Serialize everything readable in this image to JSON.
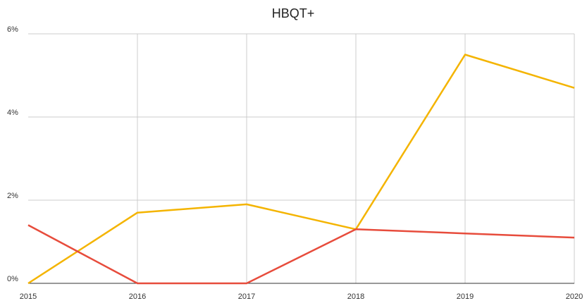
{
  "chart_data": {
    "type": "line",
    "title": "HBQT+",
    "categories": [
      "2015",
      "2016",
      "2017",
      "2018",
      "2019",
      "2020"
    ],
    "series": [
      {
        "color": "#f4b400",
        "values": [
          0,
          1.7,
          1.9,
          1.3,
          5.5,
          4.7
        ]
      },
      {
        "color": "#e74c3c",
        "values": [
          1.4,
          0,
          0,
          1.3,
          1.2,
          1.1
        ]
      }
    ],
    "ylim": [
      0,
      6
    ],
    "yticks": [
      {
        "value": 0,
        "label": "0%"
      },
      {
        "value": 2,
        "label": "2%"
      },
      {
        "value": 4,
        "label": "4%"
      },
      {
        "value": 6,
        "label": "6%"
      }
    ],
    "grid": true
  }
}
